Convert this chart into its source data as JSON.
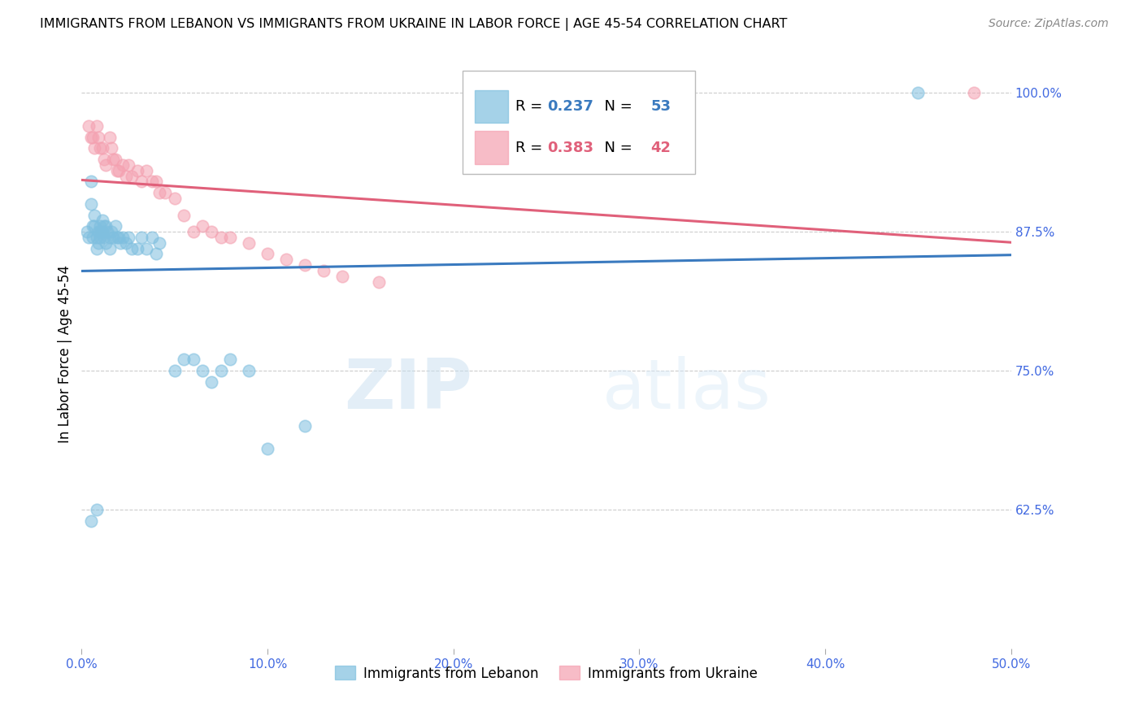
{
  "title": "IMMIGRANTS FROM LEBANON VS IMMIGRANTS FROM UKRAINE IN LABOR FORCE | AGE 45-54 CORRELATION CHART",
  "source": "Source: ZipAtlas.com",
  "ylabel": "In Labor Force | Age 45-54",
  "watermark_zip": "ZIP",
  "watermark_atlas": "atlas",
  "lebanon_R": 0.237,
  "lebanon_N": 53,
  "ukraine_R": 0.383,
  "ukraine_N": 42,
  "lebanon_color": "#7fbfdf",
  "ukraine_color": "#f4a0b0",
  "lebanon_line_color": "#3a7abf",
  "ukraine_line_color": "#e0607a",
  "background_color": "#ffffff",
  "grid_color": "#cccccc",
  "axis_label_color": "#4169e1",
  "xlim": [
    0.0,
    0.5
  ],
  "ylim": [
    0.5,
    1.03
  ],
  "xticks": [
    0.0,
    0.1,
    0.2,
    0.3,
    0.4,
    0.5
  ],
  "yticks": [
    0.625,
    0.75,
    0.875,
    1.0
  ],
  "ytick_labels": [
    "62.5%",
    "75.0%",
    "87.5%",
    "100.0%"
  ],
  "xtick_labels": [
    "0.0%",
    "10.0%",
    "20.0%",
    "30.0%",
    "40.0%",
    "50.0%"
  ],
  "lebanon_x": [
    0.003,
    0.004,
    0.005,
    0.005,
    0.006,
    0.006,
    0.007,
    0.007,
    0.008,
    0.008,
    0.009,
    0.009,
    0.01,
    0.01,
    0.01,
    0.011,
    0.011,
    0.012,
    0.012,
    0.013,
    0.013,
    0.014,
    0.015,
    0.015,
    0.016,
    0.017,
    0.018,
    0.019,
    0.02,
    0.021,
    0.022,
    0.024,
    0.025,
    0.027,
    0.03,
    0.032,
    0.035,
    0.038,
    0.04,
    0.042,
    0.05,
    0.055,
    0.06,
    0.065,
    0.07,
    0.075,
    0.08,
    0.09,
    0.1,
    0.12,
    0.005,
    0.008,
    0.45
  ],
  "lebanon_y": [
    0.875,
    0.87,
    0.92,
    0.9,
    0.88,
    0.87,
    0.89,
    0.88,
    0.87,
    0.86,
    0.875,
    0.865,
    0.88,
    0.875,
    0.87,
    0.885,
    0.875,
    0.88,
    0.87,
    0.88,
    0.865,
    0.875,
    0.87,
    0.86,
    0.875,
    0.87,
    0.88,
    0.87,
    0.87,
    0.865,
    0.87,
    0.865,
    0.87,
    0.86,
    0.86,
    0.87,
    0.86,
    0.87,
    0.855,
    0.865,
    0.75,
    0.76,
    0.76,
    0.75,
    0.74,
    0.75,
    0.76,
    0.75,
    0.68,
    0.7,
    0.615,
    0.625,
    1.0
  ],
  "ukraine_x": [
    0.004,
    0.005,
    0.006,
    0.007,
    0.008,
    0.009,
    0.01,
    0.011,
    0.012,
    0.013,
    0.015,
    0.016,
    0.017,
    0.018,
    0.019,
    0.02,
    0.022,
    0.024,
    0.025,
    0.027,
    0.03,
    0.032,
    0.035,
    0.038,
    0.04,
    0.042,
    0.045,
    0.05,
    0.055,
    0.06,
    0.065,
    0.07,
    0.075,
    0.08,
    0.09,
    0.1,
    0.11,
    0.12,
    0.13,
    0.14,
    0.16,
    0.48
  ],
  "ukraine_y": [
    0.97,
    0.96,
    0.96,
    0.95,
    0.97,
    0.96,
    0.95,
    0.95,
    0.94,
    0.935,
    0.96,
    0.95,
    0.94,
    0.94,
    0.93,
    0.93,
    0.935,
    0.925,
    0.935,
    0.925,
    0.93,
    0.92,
    0.93,
    0.92,
    0.92,
    0.91,
    0.91,
    0.905,
    0.89,
    0.875,
    0.88,
    0.875,
    0.87,
    0.87,
    0.865,
    0.855,
    0.85,
    0.845,
    0.84,
    0.835,
    0.83,
    1.0
  ]
}
